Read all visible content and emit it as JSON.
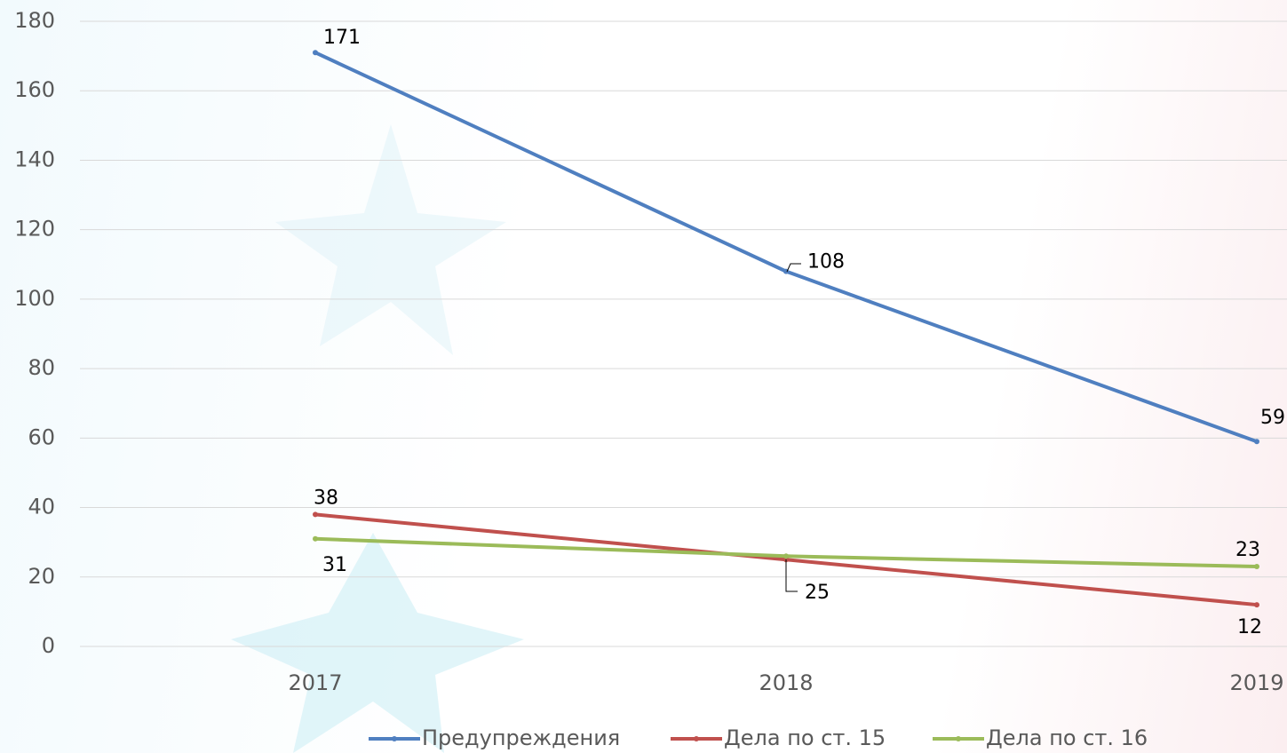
{
  "chart_data": {
    "type": "line",
    "categories": [
      "2017",
      "2018",
      "2019"
    ],
    "series": [
      {
        "name": "Предупреждения",
        "color": "#4f7fc0",
        "values": [
          171,
          108,
          59
        ],
        "labels_shown": [
          true,
          true,
          true
        ]
      },
      {
        "name": "Дела по ст. 15",
        "color": "#c0504d",
        "values": [
          38,
          25,
          12
        ],
        "labels_shown": [
          true,
          true,
          true
        ]
      },
      {
        "name": "Дела по ст. 16",
        "color": "#9bbb59",
        "values": [
          31,
          26,
          23
        ],
        "labels_shown": [
          true,
          false,
          true
        ]
      }
    ],
    "ylim": [
      0,
      180
    ],
    "yticks": [
      0,
      20,
      40,
      60,
      80,
      100,
      120,
      140,
      160,
      180
    ],
    "grid": true,
    "legend": "bottom"
  }
}
